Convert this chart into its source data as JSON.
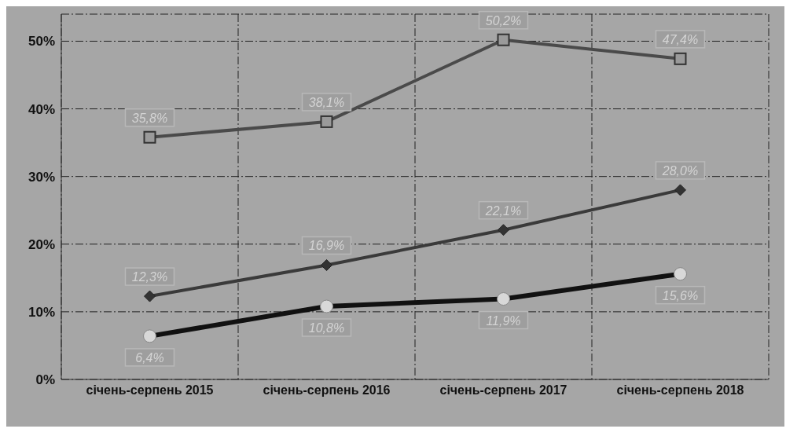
{
  "chart_data": {
    "type": "line",
    "categories": [
      "січень-серпень 2015",
      "січень-серпень 2016",
      "січень-серпень 2017",
      "січень-серпень 2018"
    ],
    "series": [
      {
        "color": "#4a4a4a",
        "marker": "square",
        "values": [
          35.8,
          38.1,
          50.2,
          47.4
        ],
        "value_labels": [
          "35,8%",
          "38,1%",
          "50,2%",
          "47,4%"
        ]
      },
      {
        "color": "#3a3a3a",
        "marker": "diamond",
        "values": [
          12.3,
          16.9,
          22.1,
          28.0
        ],
        "value_labels": [
          "12,3%",
          "16,9%",
          "22,1%",
          "28,0%"
        ]
      },
      {
        "color": "#111111",
        "marker": "circle",
        "values": [
          6.4,
          10.8,
          11.9,
          15.6
        ],
        "value_labels": [
          "6,4%",
          "10,8%",
          "11,9%",
          "15,6%"
        ]
      }
    ],
    "ylim": [
      0,
      54
    ],
    "yticks": [
      {
        "value": 0,
        "label": "0%"
      },
      {
        "value": 10,
        "label": "10%"
      },
      {
        "value": 20,
        "label": "20%"
      },
      {
        "value": 30,
        "label": "30%"
      },
      {
        "value": 40,
        "label": "40%"
      },
      {
        "value": 50,
        "label": "50%"
      }
    ],
    "grid": true,
    "line_style": "solid"
  }
}
